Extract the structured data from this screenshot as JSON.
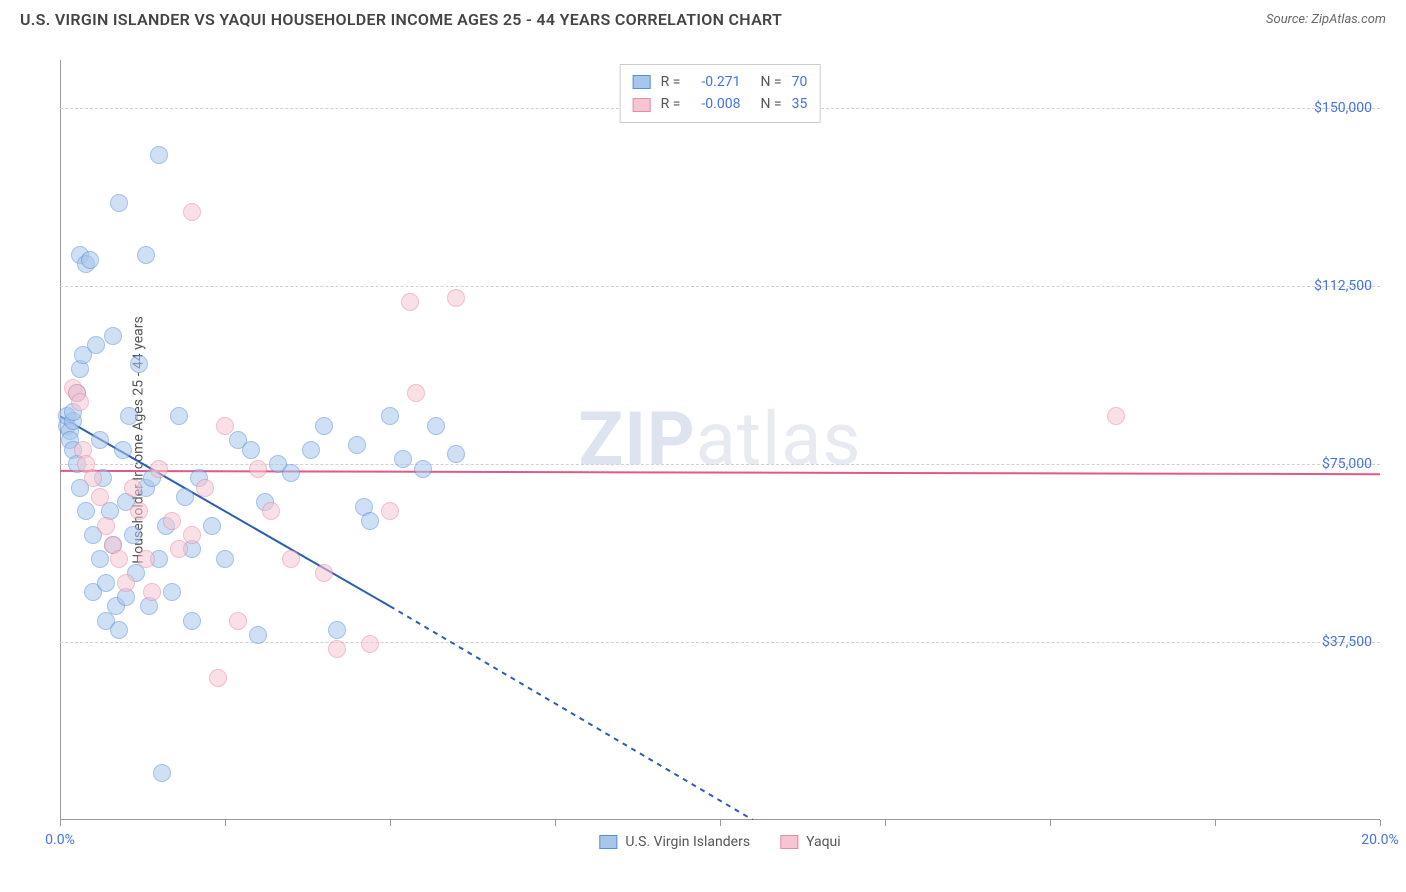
{
  "title": "U.S. VIRGIN ISLANDER VS YAQUI HOUSEHOLDER INCOME AGES 25 - 44 YEARS CORRELATION CHART",
  "source": "Source: ZipAtlas.com",
  "watermark_bold": "ZIP",
  "watermark_light": "atlas",
  "y_axis_label": "Householder Income Ages 25 - 44 years",
  "chart": {
    "type": "scatter",
    "background_color": "#ffffff",
    "grid_color": "#d0d0d0",
    "axis_color": "#999999",
    "tick_label_color": "#4472e4",
    "xlim": [
      0,
      20
    ],
    "ylim": [
      0,
      160000
    ],
    "x_ticks": [
      0,
      2.5,
      5,
      7.5,
      10,
      12.5,
      15,
      17.5,
      20
    ],
    "x_tick_labels": {
      "0": "0.0%",
      "20": "20.0%"
    },
    "y_ticks": [
      37500,
      75000,
      112500,
      150000
    ],
    "y_tick_labels": [
      "$37,500",
      "$75,000",
      "$112,500",
      "$150,000"
    ],
    "point_radius": 9,
    "point_opacity": 0.55,
    "point_border_width": 1.2,
    "series": [
      {
        "name": "U.S. Virgin Islanders",
        "fill": "#a8c5ec",
        "stroke": "#5a8fd6",
        "R": "-0.271",
        "N": "70",
        "trend": {
          "solid": [
            [
              0,
              85000
            ],
            [
              5,
              45000
            ]
          ],
          "dashed": [
            [
              5,
              45000
            ],
            [
              10.5,
              0
            ]
          ],
          "color": "#2e5db0",
          "width": 2
        },
        "points": [
          [
            0.1,
            83000
          ],
          [
            0.1,
            85000
          ],
          [
            0.15,
            82000
          ],
          [
            0.15,
            80000
          ],
          [
            0.2,
            84000
          ],
          [
            0.2,
            86000
          ],
          [
            0.2,
            78000
          ],
          [
            0.25,
            90000
          ],
          [
            0.25,
            75000
          ],
          [
            0.3,
            95000
          ],
          [
            0.3,
            70000
          ],
          [
            0.3,
            119000
          ],
          [
            0.35,
            98000
          ],
          [
            0.4,
            117000
          ],
          [
            0.4,
            65000
          ],
          [
            0.45,
            118000
          ],
          [
            0.5,
            60000
          ],
          [
            0.5,
            48000
          ],
          [
            0.55,
            100000
          ],
          [
            0.6,
            80000
          ],
          [
            0.6,
            55000
          ],
          [
            0.65,
            72000
          ],
          [
            0.7,
            50000
          ],
          [
            0.7,
            42000
          ],
          [
            0.75,
            65000
          ],
          [
            0.8,
            102000
          ],
          [
            0.8,
            58000
          ],
          [
            0.85,
            45000
          ],
          [
            0.9,
            40000
          ],
          [
            0.9,
            130000
          ],
          [
            0.95,
            78000
          ],
          [
            1.0,
            67000
          ],
          [
            1.0,
            47000
          ],
          [
            1.05,
            85000
          ],
          [
            1.1,
            60000
          ],
          [
            1.15,
            52000
          ],
          [
            1.2,
            96000
          ],
          [
            1.3,
            119000
          ],
          [
            1.3,
            70000
          ],
          [
            1.35,
            45000
          ],
          [
            1.4,
            72000
          ],
          [
            1.5,
            140000
          ],
          [
            1.5,
            55000
          ],
          [
            1.55,
            10000
          ],
          [
            1.6,
            62000
          ],
          [
            1.7,
            48000
          ],
          [
            1.8,
            85000
          ],
          [
            1.9,
            68000
          ],
          [
            2.0,
            57000
          ],
          [
            2.0,
            42000
          ],
          [
            2.1,
            72000
          ],
          [
            2.3,
            62000
          ],
          [
            2.5,
            55000
          ],
          [
            2.7,
            80000
          ],
          [
            2.9,
            78000
          ],
          [
            3.0,
            39000
          ],
          [
            3.1,
            67000
          ],
          [
            3.3,
            75000
          ],
          [
            3.5,
            73000
          ],
          [
            3.8,
            78000
          ],
          [
            4.0,
            83000
          ],
          [
            4.2,
            40000
          ],
          [
            4.5,
            79000
          ],
          [
            4.6,
            66000
          ],
          [
            4.7,
            63000
          ],
          [
            5.0,
            85000
          ],
          [
            5.2,
            76000
          ],
          [
            5.5,
            74000
          ],
          [
            5.7,
            83000
          ],
          [
            6.0,
            77000
          ]
        ]
      },
      {
        "name": "Yaqui",
        "fill": "#f5c5d3",
        "stroke": "#e889a5",
        "R": "-0.008",
        "N": "35",
        "trend": {
          "solid": [
            [
              0,
              73500
            ],
            [
              20,
              72800
            ]
          ],
          "color": "#e05a87",
          "width": 2
        },
        "points": [
          [
            0.2,
            91000
          ],
          [
            0.25,
            90000
          ],
          [
            0.3,
            88000
          ],
          [
            0.35,
            78000
          ],
          [
            0.4,
            75000
          ],
          [
            0.5,
            72000
          ],
          [
            0.6,
            68000
          ],
          [
            0.7,
            62000
          ],
          [
            0.8,
            58000
          ],
          [
            0.9,
            55000
          ],
          [
            1.0,
            50000
          ],
          [
            1.1,
            70000
          ],
          [
            1.2,
            65000
          ],
          [
            1.3,
            55000
          ],
          [
            1.4,
            48000
          ],
          [
            1.5,
            74000
          ],
          [
            1.7,
            63000
          ],
          [
            1.8,
            57000
          ],
          [
            2.0,
            128000
          ],
          [
            2.0,
            60000
          ],
          [
            2.2,
            70000
          ],
          [
            2.4,
            30000
          ],
          [
            2.5,
            83000
          ],
          [
            2.7,
            42000
          ],
          [
            3.0,
            74000
          ],
          [
            3.2,
            65000
          ],
          [
            3.5,
            55000
          ],
          [
            4.0,
            52000
          ],
          [
            4.2,
            36000
          ],
          [
            4.7,
            37000
          ],
          [
            5.0,
            65000
          ],
          [
            5.3,
            109000
          ],
          [
            5.4,
            90000
          ],
          [
            6.0,
            110000
          ],
          [
            16.0,
            85000
          ]
        ]
      }
    ]
  },
  "legend_top_label_R": "R =",
  "legend_top_label_N": "N =",
  "legend_bottom": [
    "U.S. Virgin Islanders",
    "Yaqui"
  ]
}
